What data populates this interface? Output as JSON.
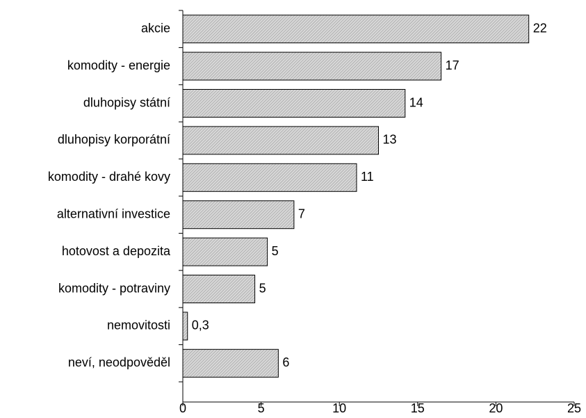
{
  "chart_data": {
    "type": "bar",
    "orientation": "horizontal",
    "categories": [
      "akcie",
      "komodity - energie",
      "dluhopisy státní",
      "dluhopisy korporátní",
      "komodity - drahé kovy",
      "alternativní investice",
      "hotovost a depozita",
      "komodity - potraviny",
      "nemovitosti",
      "neví, neodpověděl"
    ],
    "values": [
      22.1,
      16.5,
      14.2,
      12.5,
      11.1,
      7.1,
      5.4,
      4.6,
      0.3,
      6.1
    ],
    "value_labels": [
      "22",
      "17",
      "14",
      "13",
      "11",
      "7",
      "5",
      "5",
      "0,3",
      "6"
    ],
    "color": "#c0c0c0",
    "xlim": [
      0,
      25
    ],
    "xticks": [
      0,
      5,
      10,
      15,
      20,
      25
    ],
    "grid": false
  }
}
